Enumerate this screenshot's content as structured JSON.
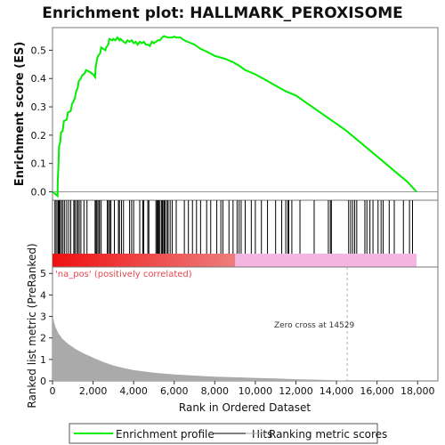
{
  "title": "Enrichment plot: HALLMARK_PEROXISOME",
  "colors": {
    "enrichment_line": "#00ee00",
    "hits": "#000000",
    "metric_fill": "#aaaaaa",
    "zero_line": "#999999",
    "pos_label": "#e8464b",
    "band_red": "#ee1111",
    "band_pink": "#f4b5e0",
    "frame": "#777777"
  },
  "chart_data": {
    "type": "line",
    "xlabel": "Rank in Ordered Dataset",
    "xlim": [
      0,
      19000
    ],
    "x_ticks": [
      0,
      2000,
      4000,
      6000,
      8000,
      10000,
      12000,
      14000,
      16000,
      18000
    ],
    "x_tick_labels": [
      "0",
      "2,000",
      "4,000",
      "6,000",
      "8,000",
      "10,000",
      "12,000",
      "14,000",
      "16,000",
      "18,000"
    ],
    "es_panel": {
      "ylabel": "Enrichment score (ES)",
      "ylim": [
        -0.03,
        0.58
      ],
      "y_ticks": [
        0.0,
        0.1,
        0.2,
        0.3,
        0.4,
        0.5
      ],
      "y_tick_labels": [
        "0.0",
        "0.1",
        "0.2",
        "0.3",
        "0.4",
        "0.5"
      ],
      "series": [
        {
          "name": "Enrichment profile",
          "x": [
            0,
            250,
            260,
            300,
            320,
            380,
            420,
            500,
            560,
            700,
            760,
            900,
            960,
            1100,
            1150,
            1250,
            1290,
            1400,
            1450,
            1600,
            1650,
            1800,
            2000,
            2100,
            2130,
            2200,
            2250,
            2350,
            2400,
            2600,
            2650,
            2750,
            2800,
            2950,
            3000,
            3100,
            3200,
            3300,
            3350,
            3500,
            3600,
            3700,
            3800,
            3900,
            4000,
            4100,
            4200,
            4300,
            4400,
            4500,
            4600,
            4700,
            4800,
            4900,
            5000,
            5100,
            5200,
            5300,
            5400,
            5500,
            5550,
            5700,
            5800,
            5900,
            6000,
            6100,
            6200,
            6300,
            6500,
            7000,
            7300,
            7600,
            8000,
            8500,
            8900,
            9200,
            9500,
            10000,
            10500,
            11000,
            11500,
            12000,
            12500,
            13000,
            13500,
            14000,
            14500,
            15000,
            15500,
            16000,
            16500,
            17000,
            17500,
            17950
          ],
          "y": [
            0.0,
            -0.015,
            0.04,
            0.1,
            0.16,
            0.175,
            0.21,
            0.215,
            0.25,
            0.255,
            0.28,
            0.285,
            0.31,
            0.33,
            0.35,
            0.37,
            0.39,
            0.4,
            0.41,
            0.42,
            0.43,
            0.425,
            0.415,
            0.405,
            0.44,
            0.47,
            0.48,
            0.49,
            0.51,
            0.5,
            0.51,
            0.52,
            0.54,
            0.535,
            0.54,
            0.535,
            0.545,
            0.535,
            0.54,
            0.53,
            0.525,
            0.535,
            0.53,
            0.535,
            0.525,
            0.53,
            0.52,
            0.53,
            0.525,
            0.53,
            0.52,
            0.52,
            0.515,
            0.53,
            0.525,
            0.53,
            0.535,
            0.535,
            0.545,
            0.55,
            0.548,
            0.545,
            0.545,
            0.545,
            0.548,
            0.545,
            0.545,
            0.545,
            0.535,
            0.52,
            0.505,
            0.495,
            0.48,
            0.47,
            0.458,
            0.445,
            0.43,
            0.415,
            0.395,
            0.375,
            0.355,
            0.34,
            0.315,
            0.29,
            0.265,
            0.24,
            0.215,
            0.185,
            0.155,
            0.125,
            0.095,
            0.065,
            0.035,
            0.0
          ]
        }
      ]
    },
    "hits_panel": {
      "name": "Hits",
      "positions": [
        120,
        180,
        260,
        300,
        330,
        380,
        450,
        520,
        600,
        700,
        800,
        900,
        1050,
        1100,
        1180,
        1250,
        1320,
        1400,
        1550,
        1700,
        2100,
        2150,
        2200,
        2280,
        2320,
        2400,
        2700,
        2760,
        2820,
        2880,
        3050,
        3250,
        3300,
        3400,
        3500,
        3800,
        3900,
        4000,
        4300,
        4450,
        4500,
        4700,
        4750,
        5100,
        5150,
        5200,
        5250,
        5300,
        5380,
        5420,
        5480,
        5520,
        5560,
        5650,
        5700,
        5800,
        5900,
        6100,
        6500,
        6700,
        6900,
        7100,
        7300,
        7600,
        7800,
        8100,
        8300,
        8400,
        8700,
        8900,
        9100,
        9200,
        9300,
        9500,
        9800,
        10000,
        10300,
        10600,
        11000,
        11300,
        11500,
        11600,
        11650,
        11800,
        12200,
        12900,
        13600,
        13700,
        13750,
        14600,
        14700,
        14800,
        14900,
        15000,
        15400,
        15500,
        15650,
        15800,
        16050,
        16200,
        16300,
        16600,
        16850,
        17300,
        17600,
        17750
      ]
    },
    "band": {
      "red_until": 9000,
      "pink_until": 17950
    },
    "metric_panel": {
      "ylabel": "Ranked list metric (PreRanked)",
      "ylim": [
        0,
        5.3
      ],
      "y_ticks": [
        0,
        1,
        2,
        3,
        4,
        5
      ],
      "y_tick_labels": [
        "0",
        "1",
        "2",
        "3",
        "4",
        "5"
      ],
      "x": [
        0,
        60,
        150,
        300,
        500,
        800,
        1200,
        1600,
        2000,
        2500,
        3000,
        3500,
        4000,
        5000,
        6000,
        7000,
        8000,
        9000,
        10000,
        11000,
        12000,
        13000,
        14000,
        14529,
        15000
      ],
      "y": [
        3.3,
        2.8,
        2.5,
        2.2,
        1.95,
        1.7,
        1.45,
        1.25,
        1.08,
        0.88,
        0.72,
        0.6,
        0.5,
        0.38,
        0.3,
        0.25,
        0.2,
        0.17,
        0.14,
        0.11,
        0.08,
        0.06,
        0.03,
        0.0,
        0.0
      ],
      "zero_cross_label": "Zero cross at 14529",
      "zero_cross_x": 14529,
      "pos_label": "'na_pos' (positively correlated)"
    }
  },
  "legend": {
    "items": [
      {
        "label": "Enrichment profile",
        "kind": "line",
        "color": "#00ee00"
      },
      {
        "label": "Hits",
        "kind": "line",
        "color": "#000000"
      },
      {
        "label": "Ranking metric scores",
        "kind": "line",
        "color": "#aaaaaa"
      }
    ]
  }
}
